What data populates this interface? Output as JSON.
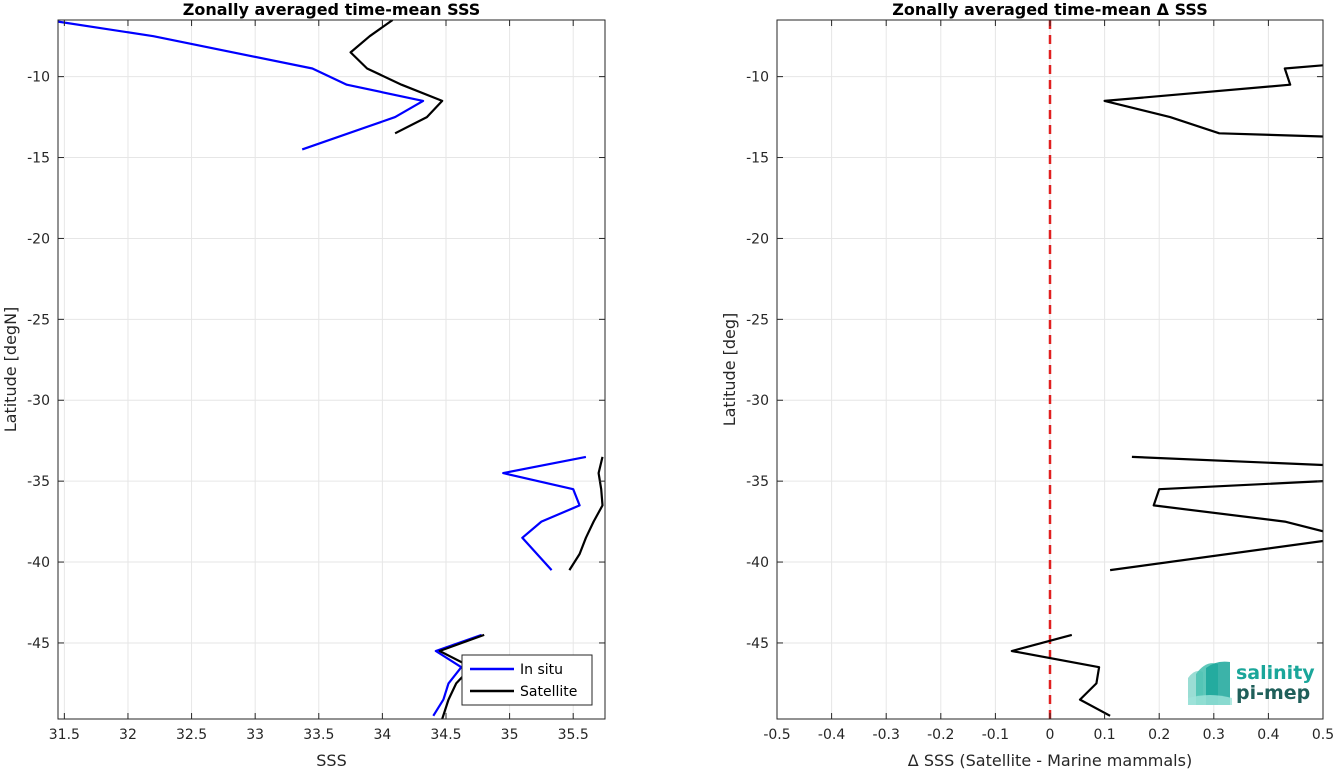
{
  "chart_data": [
    {
      "type": "line",
      "title": "Zonally averaged time-mean SSS",
      "xlabel": "SSS",
      "ylabel": "Latitude [degN]",
      "xlim": [
        31.45,
        35.75
      ],
      "ylim": [
        -49.7,
        -6.5
      ],
      "xticks": [
        31.5,
        32,
        32.5,
        33,
        33.5,
        34,
        34.5,
        35,
        35.5
      ],
      "xtick_labels": [
        "31.5",
        "32",
        "32.5",
        "33",
        "33.5",
        "34",
        "34.5",
        "35",
        "35.5"
      ],
      "yticks": [
        -10,
        -15,
        -20,
        -25,
        -30,
        -35,
        -40,
        -45
      ],
      "ytick_labels": [
        "-10",
        "-15",
        "-20",
        "-25",
        "-30",
        "-35",
        "-40",
        "-45"
      ],
      "grid": true,
      "legend": {
        "placement": "bottom-right",
        "entries": [
          "In situ",
          "Satellite"
        ]
      },
      "series": [
        {
          "name": "In situ",
          "color": "#0000ff",
          "segments": [
            [
              [
                31.45,
                -6.6
              ],
              [
                32.2,
                -7.5
              ],
              [
                33.45,
                -9.5
              ],
              [
                33.72,
                -10.5
              ],
              [
                34.32,
                -11.5
              ],
              [
                34.1,
                -12.5
              ],
              [
                33.37,
                -14.5
              ]
            ],
            [
              [
                35.6,
                -33.5
              ],
              [
                34.95,
                -34.5
              ],
              [
                35.5,
                -35.5
              ],
              [
                35.55,
                -36.5
              ],
              [
                35.25,
                -37.5
              ],
              [
                35.1,
                -38.5
              ],
              [
                35.33,
                -40.5
              ]
            ],
            [
              [
                34.78,
                -44.5
              ],
              [
                34.42,
                -45.5
              ],
              [
                34.62,
                -46.5
              ],
              [
                34.52,
                -47.5
              ],
              [
                34.48,
                -48.5
              ],
              [
                34.4,
                -49.5
              ]
            ]
          ]
        },
        {
          "name": "Satellite",
          "color": "#000000",
          "segments": [
            [
              [
                34.08,
                -6.5
              ],
              [
                33.9,
                -7.5
              ],
              [
                33.75,
                -8.5
              ],
              [
                33.88,
                -9.5
              ],
              [
                34.15,
                -10.5
              ],
              [
                34.47,
                -11.5
              ],
              [
                34.35,
                -12.5
              ],
              [
                34.1,
                -13.5
              ]
            ],
            [
              [
                35.73,
                -33.5
              ],
              [
                35.7,
                -34.5
              ],
              [
                35.72,
                -35.5
              ],
              [
                35.73,
                -36.5
              ],
              [
                35.66,
                -37.5
              ],
              [
                35.6,
                -38.5
              ],
              [
                35.55,
                -39.5
              ],
              [
                35.47,
                -40.5
              ]
            ],
            [
              [
                34.8,
                -44.5
              ],
              [
                34.45,
                -45.5
              ],
              [
                34.7,
                -46.5
              ],
              [
                34.58,
                -47.5
              ],
              [
                34.52,
                -48.5
              ],
              [
                34.47,
                -49.7
              ]
            ]
          ]
        }
      ]
    },
    {
      "type": "line",
      "title": "Zonally averaged time-mean Δ SSS",
      "xlabel": "Δ SSS (Satellite - Marine mammals)",
      "ylabel": "Latitude [deg]",
      "xlim": [
        -0.5,
        0.5
      ],
      "ylim": [
        -49.7,
        -6.5
      ],
      "xticks": [
        -0.5,
        -0.4,
        -0.3,
        -0.2,
        -0.1,
        0,
        0.1,
        0.2,
        0.3,
        0.4,
        0.5
      ],
      "xtick_labels": [
        "-0.5",
        "-0.4",
        "-0.3",
        "-0.2",
        "-0.1",
        "0",
        "0.1",
        "0.2",
        "0.3",
        "0.4",
        "0.5"
      ],
      "yticks": [
        -10,
        -15,
        -20,
        -25,
        -30,
        -35,
        -40,
        -45
      ],
      "ytick_labels": [
        "-10",
        "-15",
        "-20",
        "-25",
        "-30",
        "-35",
        "-40",
        "-45"
      ],
      "grid": true,
      "zero_line": {
        "x": 0,
        "color": "#e02020",
        "style": "dashed"
      },
      "series": [
        {
          "color": "#000000",
          "segments": [
            [
              [
                0.5,
                -9.3
              ],
              [
                0.43,
                -9.5
              ],
              [
                0.44,
                -10.5
              ],
              [
                0.1,
                -11.5
              ],
              [
                0.22,
                -12.5
              ],
              [
                0.31,
                -13.5
              ],
              [
                0.5,
                -13.7
              ]
            ],
            [
              [
                0.15,
                -33.5
              ],
              [
                0.5,
                -34.0
              ]
            ],
            [
              [
                0.5,
                -35.0
              ],
              [
                0.2,
                -35.5
              ],
              [
                0.19,
                -36.5
              ],
              [
                0.43,
                -37.5
              ],
              [
                0.5,
                -38.1
              ]
            ],
            [
              [
                0.5,
                -38.7
              ],
              [
                0.11,
                -40.5
              ]
            ],
            [
              [
                0.04,
                -44.5
              ],
              [
                -0.07,
                -45.5
              ],
              [
                0.09,
                -46.5
              ],
              [
                0.085,
                -47.5
              ],
              [
                0.055,
                -48.5
              ],
              [
                0.11,
                -49.5
              ]
            ]
          ]
        }
      ]
    }
  ],
  "logo": {
    "line1": "salinity",
    "line2": "pi-mep",
    "color": "#1aa69a"
  }
}
